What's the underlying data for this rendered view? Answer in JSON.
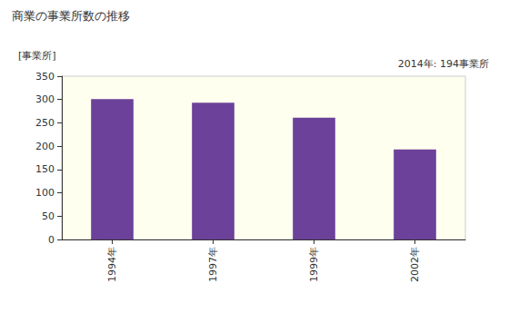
{
  "chart_data": {
    "type": "bar",
    "title": "商業の事業所数の推移",
    "y_label": "[事業所]",
    "annotation": "2014年: 194事業所",
    "categories": [
      "1994年",
      "1997年",
      "1999年",
      "2002年"
    ],
    "values": [
      301,
      293,
      261,
      193
    ],
    "color": "#6b4199",
    "ylim": [
      0,
      350
    ],
    "yticks": [
      0,
      50,
      100,
      150,
      200,
      250,
      300,
      350
    ],
    "grid": false
  }
}
